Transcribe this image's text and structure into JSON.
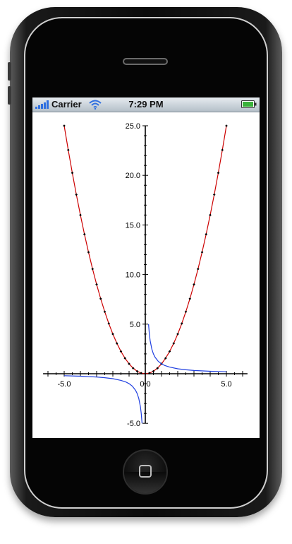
{
  "device": {
    "type": "iphone"
  },
  "status_bar": {
    "carrier": "Carrier",
    "time": "7:29 PM",
    "signal_icon": "signal-bars-icon",
    "wifi_icon": "wifi-icon",
    "battery_icon": "battery-full-icon",
    "accent_color": "#2f6fe0"
  },
  "chart_data": [
    {
      "type": "line",
      "title": "",
      "xlabel": "",
      "ylabel": "",
      "xlim": [
        -6.3,
        6.3
      ],
      "ylim": [
        -5.0,
        25.0
      ],
      "grid": false,
      "x_tick_labels": [
        -5.0,
        0.0,
        5.0
      ],
      "y_tick_labels": [
        -5.0,
        5.0,
        10.0,
        15.0,
        20.0,
        25.0
      ],
      "x_tick_label_text": [
        "-5.0",
        "0.0",
        "5.0"
      ],
      "y_tick_label_text": [
        "-5.0",
        "5.0",
        "10.0",
        "15.0",
        "20.0",
        "25.0"
      ],
      "series": [
        {
          "color": "#cc0000",
          "marker": "diamond",
          "marker_color": "#000000",
          "x": [
            -5.0,
            -4.75,
            -4.5,
            -4.25,
            -4.0,
            -3.75,
            -3.5,
            -3.25,
            -3.0,
            -2.75,
            -2.5,
            -2.25,
            -2.0,
            -1.75,
            -1.5,
            -1.25,
            -1.0,
            -0.75,
            -0.5,
            -0.25,
            0.0,
            0.25,
            0.5,
            0.75,
            1.0,
            1.25,
            1.5,
            1.75,
            2.0,
            2.25,
            2.5,
            2.75,
            3.0,
            3.25,
            3.5,
            3.75,
            4.0,
            4.25,
            4.5,
            4.75,
            5.0
          ],
          "y": [
            25.0,
            22.56,
            20.25,
            18.06,
            16.0,
            14.06,
            12.25,
            10.56,
            9.0,
            7.56,
            6.25,
            5.06,
            4.0,
            3.06,
            2.25,
            1.56,
            1.0,
            0.56,
            0.25,
            0.06,
            0.0,
            0.06,
            0.25,
            0.56,
            1.0,
            1.56,
            2.25,
            3.06,
            4.0,
            5.06,
            6.25,
            7.56,
            9.0,
            10.56,
            12.25,
            14.06,
            16.0,
            18.06,
            20.25,
            22.56,
            25.0
          ]
        },
        {
          "color": "#1f3fe0",
          "marker": "none",
          "x": [
            -5.0,
            -4.0,
            -3.0,
            -2.5,
            -2.0,
            -1.5,
            -1.2,
            -1.0,
            -0.8,
            -0.6,
            -0.5,
            -0.4,
            -0.3,
            -0.25,
            -0.2,
            0.2,
            0.25,
            0.3,
            0.4,
            0.5,
            0.6,
            0.8,
            1.0,
            1.2,
            1.5,
            2.0,
            2.5,
            3.0,
            4.0,
            5.0
          ],
          "y": [
            -0.2,
            -0.25,
            -0.33,
            -0.4,
            -0.5,
            -0.67,
            -0.83,
            -1.0,
            -1.25,
            -1.67,
            -2.0,
            -2.5,
            -3.33,
            -4.0,
            -5.0,
            5.0,
            4.0,
            3.33,
            2.5,
            2.0,
            1.67,
            1.25,
            1.0,
            0.83,
            0.67,
            0.5,
            0.4,
            0.33,
            0.25,
            0.2
          ]
        }
      ]
    }
  ]
}
